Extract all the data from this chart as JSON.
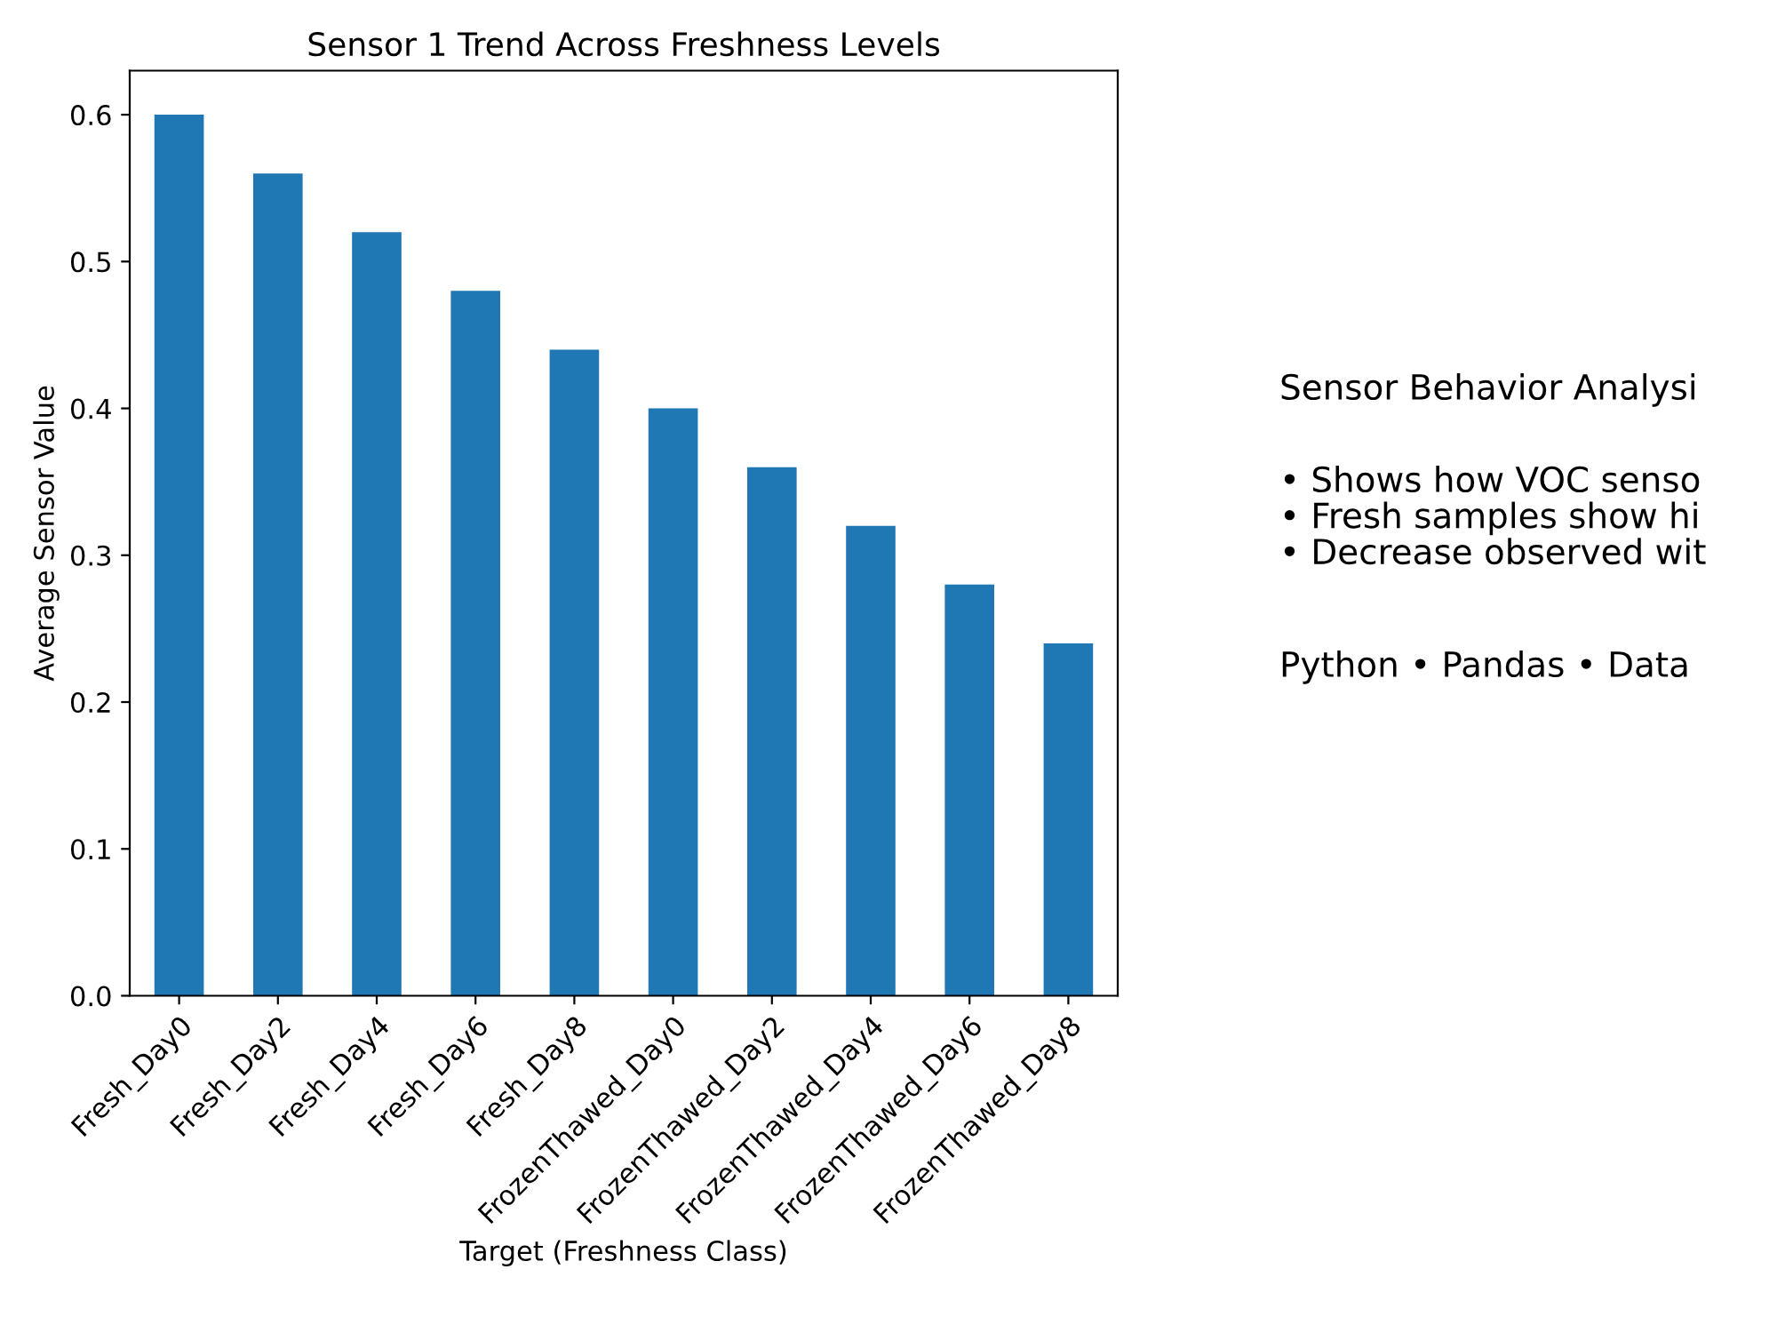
{
  "chart_data": {
    "type": "bar",
    "title": "Sensor 1 Trend Across Freshness Levels",
    "xlabel": "Target (Freshness Class)",
    "ylabel": "Average Sensor Value",
    "categories": [
      "Fresh_Day0",
      "Fresh_Day2",
      "Fresh_Day4",
      "Fresh_Day6",
      "Fresh_Day8",
      "FrozenThawed_Day0",
      "FrozenThawed_Day2",
      "FrozenThawed_Day4",
      "FrozenThawed_Day6",
      "FrozenThawed_Day8"
    ],
    "values": [
      0.6,
      0.56,
      0.52,
      0.48,
      0.44,
      0.4,
      0.36,
      0.32,
      0.28,
      0.24
    ],
    "color": "#1f77b4",
    "ylim": [
      0,
      0.63
    ],
    "yticks": [
      {
        "value": 0,
        "label": "0.0"
      },
      0.1,
      0.2,
      0.3,
      0.4,
      0.5,
      0.6
    ],
    "annotations": [
      "Sensor Behavior Analysi",
      "• Shows how VOC senso\n• Fresh samples show hi\n• Decrease observed wit",
      "Python • Pandas • Data"
    ]
  }
}
